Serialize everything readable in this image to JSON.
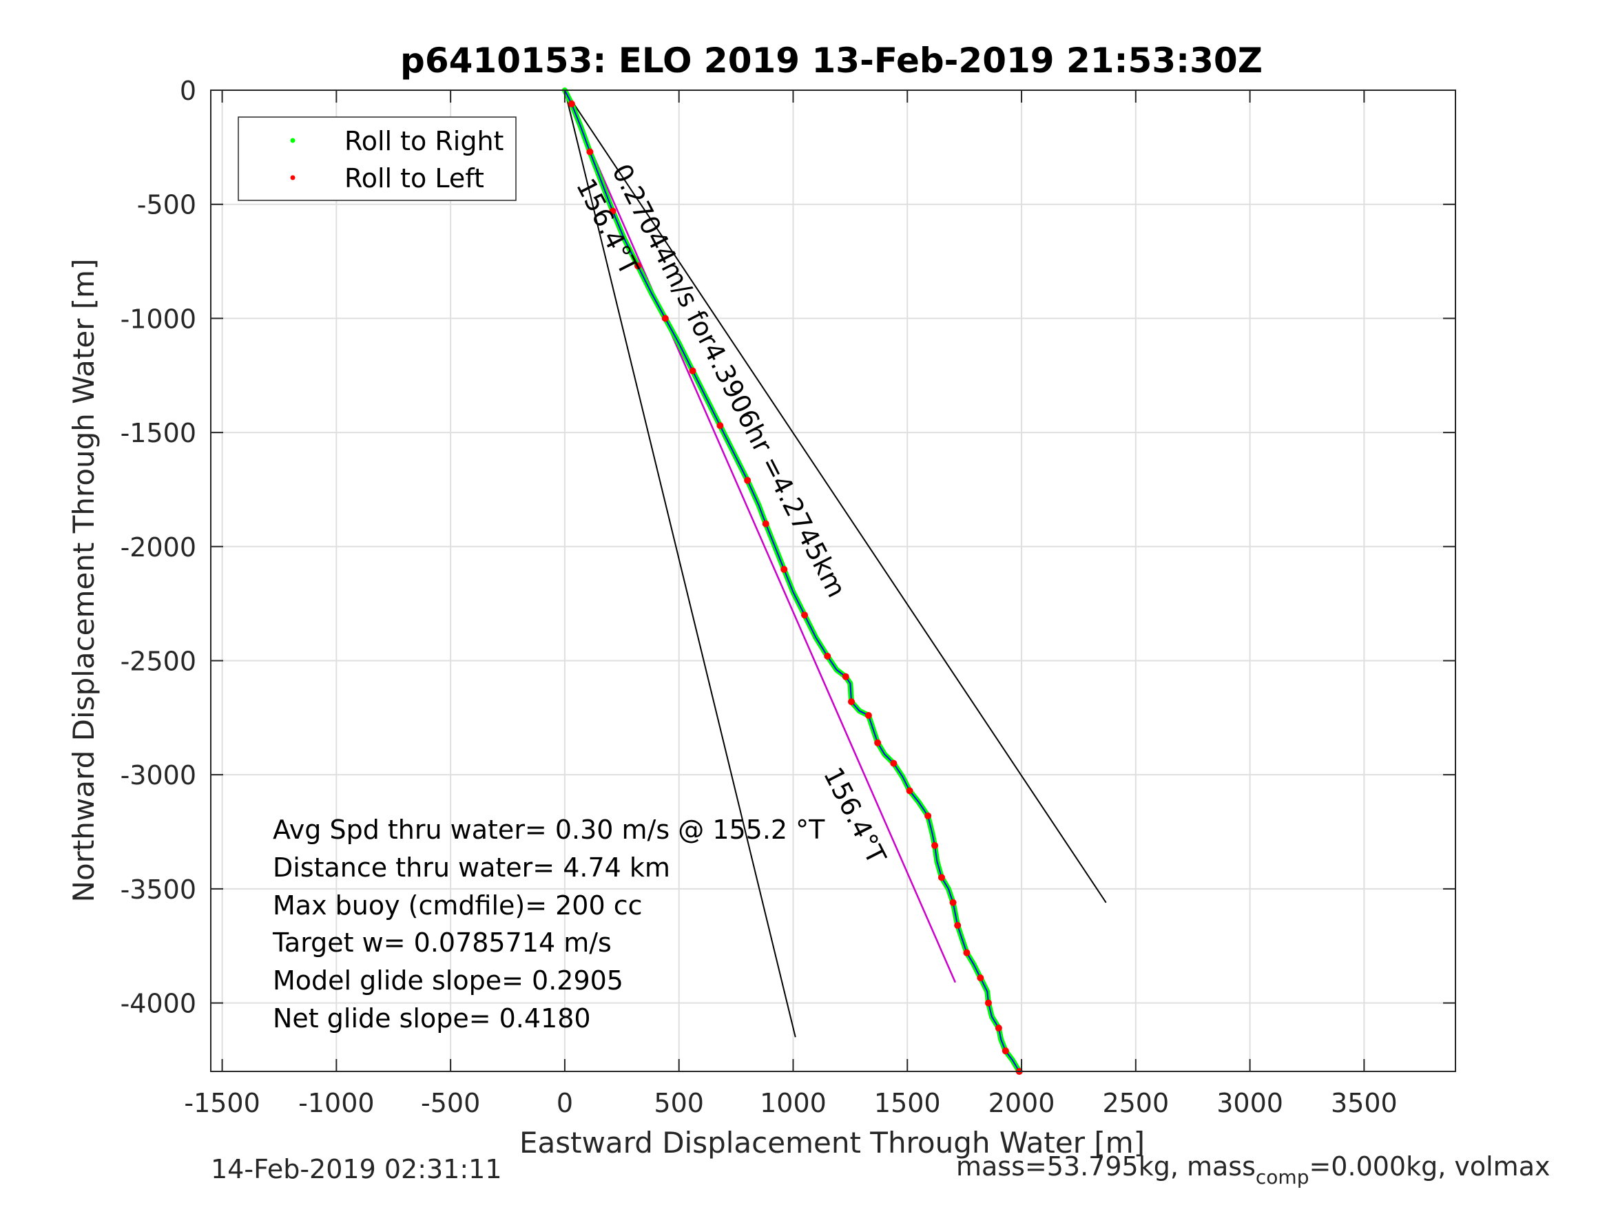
{
  "chart_data": {
    "type": "line",
    "title": "p6410153: ELO 2019 13-Feb-2019 21:53:30Z",
    "xlabel": "Eastward Displacement Through Water [m]",
    "ylabel": "Northward Displacement Through Water [m]",
    "xlim": [
      -1550,
      3900
    ],
    "ylim": [
      -4300,
      0
    ],
    "xticks": [
      -1500,
      -1000,
      -500,
      0,
      500,
      1000,
      1500,
      2000,
      2500,
      3000,
      3500
    ],
    "yticks": [
      0,
      -500,
      -1000,
      -1500,
      -2000,
      -2500,
      -3000,
      -3500,
      -4000
    ],
    "grid": true,
    "legend": {
      "location": "top-left",
      "entries": [
        {
          "label": "Roll to Right",
          "color": "#00ff00"
        },
        {
          "label": "Roll to Left",
          "color": "#ff0000"
        }
      ]
    },
    "track_color": "#0000ff",
    "roll_right_color": "#00ff00",
    "roll_left_color": "#ff0000",
    "heading_line_color": "#cc00cc",
    "track": [
      [
        0,
        0
      ],
      [
        30,
        -60
      ],
      [
        70,
        -160
      ],
      [
        110,
        -270
      ],
      [
        160,
        -400
      ],
      [
        210,
        -530
      ],
      [
        260,
        -650
      ],
      [
        320,
        -770
      ],
      [
        380,
        -890
      ],
      [
        440,
        -1000
      ],
      [
        500,
        -1110
      ],
      [
        560,
        -1230
      ],
      [
        620,
        -1350
      ],
      [
        680,
        -1470
      ],
      [
        740,
        -1590
      ],
      [
        800,
        -1710
      ],
      [
        850,
        -1820
      ],
      [
        880,
        -1900
      ],
      [
        920,
        -2000
      ],
      [
        960,
        -2100
      ],
      [
        1000,
        -2200
      ],
      [
        1050,
        -2300
      ],
      [
        1100,
        -2400
      ],
      [
        1150,
        -2480
      ],
      [
        1190,
        -2540
      ],
      [
        1230,
        -2570
      ],
      [
        1250,
        -2600
      ],
      [
        1255,
        -2680
      ],
      [
        1290,
        -2720
      ],
      [
        1330,
        -2740
      ],
      [
        1350,
        -2800
      ],
      [
        1370,
        -2860
      ],
      [
        1400,
        -2910
      ],
      [
        1440,
        -2950
      ],
      [
        1480,
        -3010
      ],
      [
        1510,
        -3070
      ],
      [
        1550,
        -3120
      ],
      [
        1590,
        -3180
      ],
      [
        1610,
        -3260
      ],
      [
        1620,
        -3310
      ],
      [
        1630,
        -3380
      ],
      [
        1650,
        -3450
      ],
      [
        1680,
        -3500
      ],
      [
        1700,
        -3560
      ],
      [
        1710,
        -3610
      ],
      [
        1720,
        -3660
      ],
      [
        1740,
        -3720
      ],
      [
        1760,
        -3780
      ],
      [
        1790,
        -3830
      ],
      [
        1820,
        -3890
      ],
      [
        1850,
        -3950
      ],
      [
        1855,
        -4000
      ],
      [
        1870,
        -4060
      ],
      [
        1900,
        -4110
      ],
      [
        1910,
        -4160
      ],
      [
        1930,
        -4210
      ],
      [
        1960,
        -4250
      ],
      [
        1990,
        -4300
      ]
    ],
    "heading_line": {
      "label": "156.4°T",
      "from": [
        0,
        0
      ],
      "to": [
        1710,
        -3910
      ]
    },
    "cone_lines": [
      {
        "from": [
          0,
          0
        ],
        "to": [
          1010,
          -4150
        ]
      },
      {
        "from": [
          0,
          0
        ],
        "to": [
          2370,
          -3560
        ]
      }
    ],
    "track_label": "0.27044m/s for4.3906hr =4.2745km",
    "annotations": [
      "156.4°T",
      "156.4°T"
    ],
    "stats": [
      "Avg Spd thru water=  0.30 m/s @ 155.2 °T",
      "Distance thru water=  4.74 km",
      "Max buoy (cmdfile)= 200 cc",
      "Target w= 0.0785714 m/s",
      "Model glide slope= 0.2905",
      "Net glide slope= 0.4180"
    ]
  },
  "footer": {
    "timestamp": "14-Feb-2019 02:31:11",
    "mass_text": "mass=53.795kg, mass",
    "mass_sub": "comp",
    "mass_rest": "=0.000kg, volmax"
  }
}
